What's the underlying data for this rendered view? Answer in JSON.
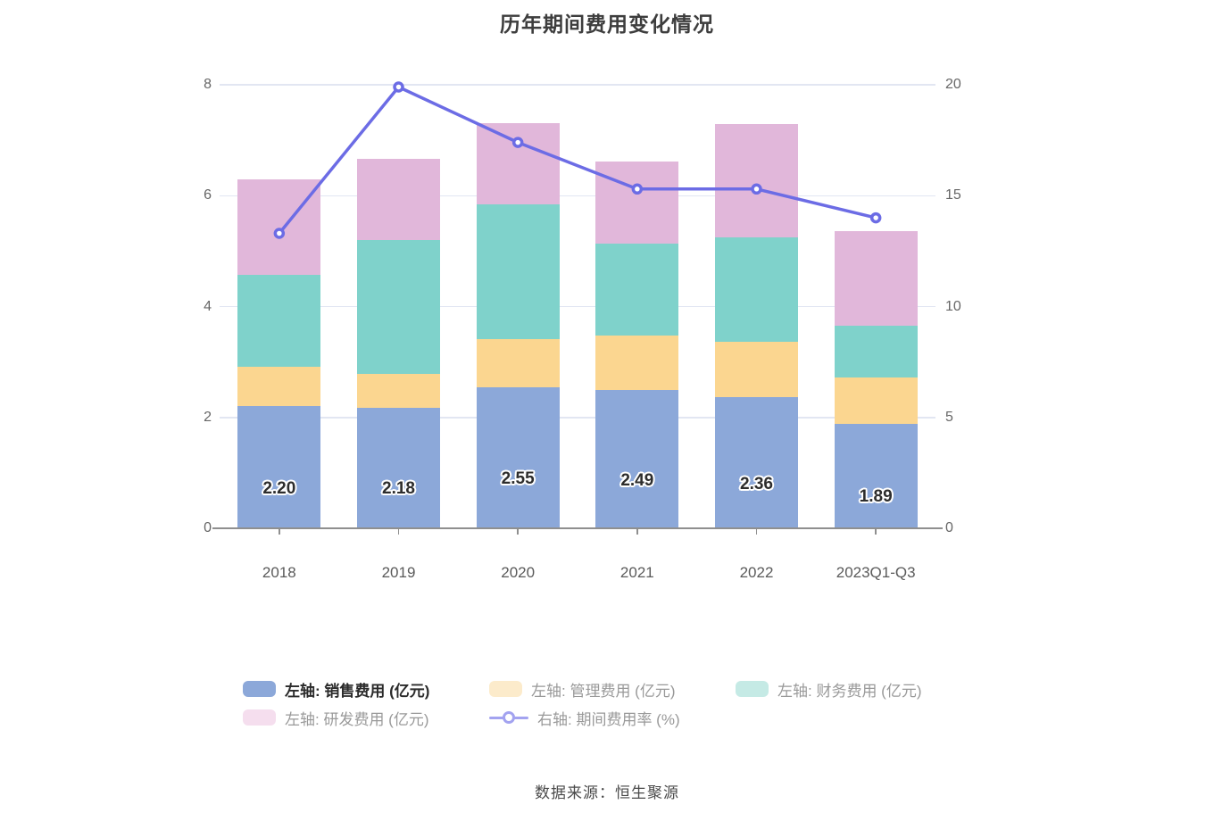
{
  "title": "历年期间费用变化情况",
  "source_note": "数据来源：恒生聚源",
  "chart_data": {
    "type": "bar",
    "subtype": "stacked-bar-with-line",
    "categories": [
      "2018",
      "2019",
      "2020",
      "2021",
      "2022",
      "2023Q1-Q3"
    ],
    "bar_series": [
      {
        "key": "sales",
        "name": "左轴: 销售费用 (亿元)",
        "color": "#8CA8D9",
        "values": [
          2.2,
          2.18,
          2.55,
          2.49,
          2.36,
          1.89
        ],
        "labels": [
          "2.20",
          "2.18",
          "2.55",
          "2.49",
          "2.36",
          "1.89"
        ]
      },
      {
        "key": "admin",
        "name": "左轴: 管理费用 (亿元)",
        "color": "#FBD690",
        "values": [
          0.71,
          0.61,
          0.86,
          0.99,
          1.0,
          0.83
        ]
      },
      {
        "key": "finance",
        "name": "左轴: 财务费用 (亿元)",
        "color": "#7FD2CB",
        "values": [
          1.66,
          2.41,
          2.43,
          1.66,
          1.88,
          0.93
        ]
      },
      {
        "key": "rd",
        "name": "左轴: 研发费用 (亿元)",
        "color": "#E1B7DA",
        "values": [
          1.72,
          1.47,
          1.46,
          1.47,
          2.05,
          1.71
        ]
      }
    ],
    "line_series": {
      "key": "expense-ratio",
      "name": "右轴: 期间费用率 (%)",
      "color": "#6C6CE5",
      "values": [
        13.3,
        19.9,
        17.4,
        15.3,
        15.3,
        14.0
      ]
    },
    "left_axis": {
      "ticks": [
        0,
        2,
        4,
        6,
        8
      ],
      "min": 0,
      "max": 8
    },
    "right_axis": {
      "ticks": [
        0,
        5,
        10,
        15,
        20
      ],
      "min": 0,
      "max": 20
    },
    "grid": true,
    "legend_position": "bottom"
  },
  "legend": {
    "rows": [
      [
        {
          "key": "sales",
          "label": "左轴: 销售费用 (亿元)",
          "marker": "rect",
          "color": "#8CA8D9",
          "emphasized": true
        },
        {
          "key": "admin",
          "label": "左轴: 管理费用 (亿元)",
          "marker": "rect",
          "color": "#FCEBCB",
          "emphasized": false
        },
        {
          "key": "finance",
          "label": "左轴: 财务费用 (亿元)",
          "marker": "rect",
          "color": "#C5EAE5",
          "emphasized": false
        }
      ],
      [
        {
          "key": "rd",
          "label": "左轴: 研发费用 (亿元)",
          "marker": "rect",
          "color": "#F5DEEE",
          "emphasized": false
        },
        {
          "key": "expense-ratio",
          "label": "右轴: 期间费用率 (%)",
          "marker": "line",
          "color": "#A3A3F0",
          "emphasized": false
        }
      ]
    ]
  }
}
